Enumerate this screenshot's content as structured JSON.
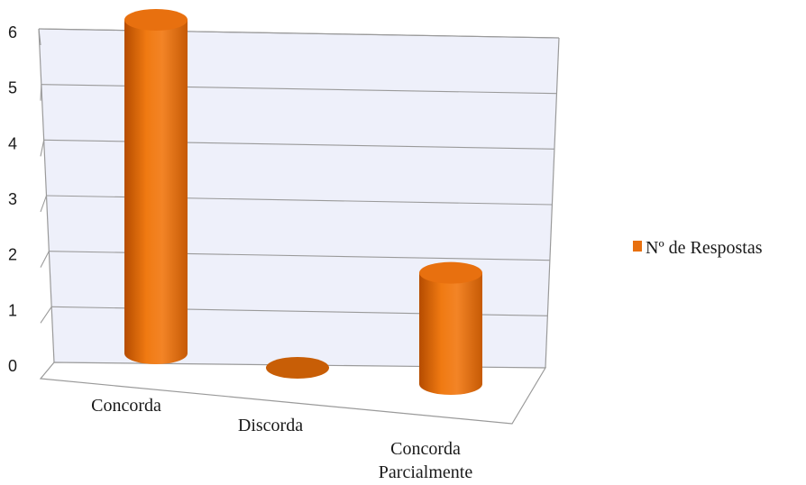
{
  "chart_data": {
    "type": "bar",
    "style": "3d-cylinder",
    "categories": [
      "Concorda",
      "Discorda",
      "Concorda Parcialmente"
    ],
    "category_lines": [
      [
        "Concorda"
      ],
      [
        "Discorda"
      ],
      [
        "Concorda",
        "Parcialmente"
      ]
    ],
    "series": [
      {
        "name": "Nº de Respostas",
        "values": [
          6,
          0,
          2
        ],
        "color": "#e8700f"
      }
    ],
    "y_ticks": [
      "0",
      "1",
      "2",
      "3",
      "4",
      "5",
      "6"
    ],
    "ylim": [
      0,
      6
    ],
    "grid": true,
    "legend_position": "right"
  }
}
